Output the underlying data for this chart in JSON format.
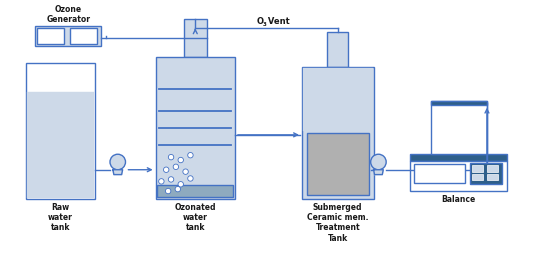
{
  "bg_color": "#ffffff",
  "fill_light_blue": "#cdd9e8",
  "fill_mid_blue": "#8eaabf",
  "fill_dark_blue": "#2e5f8a",
  "fill_gray": "#b0b0b0",
  "fill_white": "#ffffff",
  "line_color": "#4472c4",
  "text_color": "#1a1a1a",
  "labels": {
    "ozone_gen": "Ozone\nGenerator",
    "raw_tank": "Raw\nwater\ntank",
    "ozon_tank": "Ozonated\nwater\ntank",
    "ceramic_tank": "Submerged\nCeramic mem.\nTreatment\nTank",
    "balance": "Balance",
    "o3_vent_1": "O",
    "o3_vent_2": "3",
    "o3_vent_3": " Vent"
  }
}
